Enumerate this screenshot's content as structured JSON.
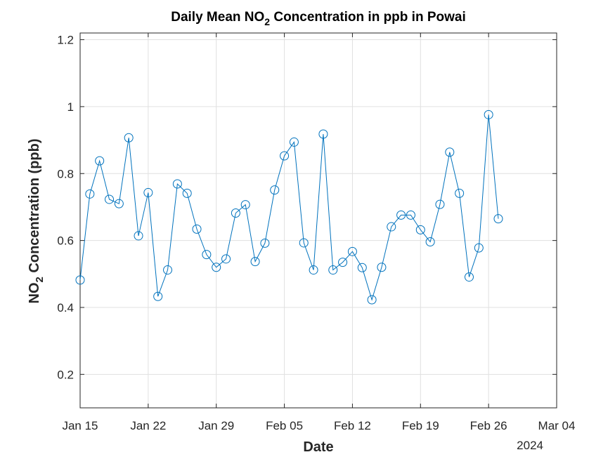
{
  "chart_data": {
    "type": "line",
    "title_prefix": "Daily Mean NO",
    "title_subscript": "2",
    "title_suffix": " Concentration in ppb in Powai",
    "xlabel": "Date",
    "ylabel_prefix": "NO",
    "ylabel_subscript": "2",
    "ylabel_suffix": " Concentration (ppb)",
    "year_label": "2024",
    "x_axis": {
      "type": "date",
      "min": "2024-01-15",
      "max": "2024-03-04",
      "ticks": [
        {
          "date": "2024-01-15",
          "label": "Jan 15"
        },
        {
          "date": "2024-01-22",
          "label": "Jan 22"
        },
        {
          "date": "2024-01-29",
          "label": "Jan 29"
        },
        {
          "date": "2024-02-05",
          "label": "Feb 05"
        },
        {
          "date": "2024-02-12",
          "label": "Feb 12"
        },
        {
          "date": "2024-02-19",
          "label": "Feb 19"
        },
        {
          "date": "2024-02-26",
          "label": "Feb 26"
        },
        {
          "date": "2024-03-04",
          "label": "Mar 04"
        }
      ]
    },
    "y_axis": {
      "min": 0.1,
      "max": 1.22,
      "ticks": [
        0.2,
        0.4,
        0.6,
        0.8,
        1,
        1.2
      ],
      "tick_labels": [
        "0.2",
        "0.4",
        "0.6",
        "0.8",
        "1",
        "1.2"
      ]
    },
    "grid": true,
    "legend": "none",
    "colors": {
      "series": "#0072bd",
      "grid": "#e0e0e0",
      "axis": "#262626"
    },
    "marker": "circle",
    "series": [
      {
        "x": [
          "2024-01-15",
          "2024-01-16",
          "2024-01-17",
          "2024-01-18",
          "2024-01-19",
          "2024-01-20",
          "2024-01-21",
          "2024-01-22",
          "2024-01-23",
          "2024-01-24",
          "2024-01-25",
          "2024-01-26",
          "2024-01-27",
          "2024-01-28",
          "2024-01-29",
          "2024-01-30",
          "2024-01-31",
          "2024-02-01",
          "2024-02-02",
          "2024-02-03",
          "2024-02-04",
          "2024-02-05",
          "2024-02-06",
          "2024-02-07",
          "2024-02-08",
          "2024-02-09",
          "2024-02-10",
          "2024-02-11",
          "2024-02-12",
          "2024-02-13",
          "2024-02-14",
          "2024-02-15",
          "2024-02-16",
          "2024-02-17",
          "2024-02-18",
          "2024-02-19",
          "2024-02-20",
          "2024-02-21",
          "2024-02-22",
          "2024-02-23",
          "2024-02-24",
          "2024-02-25",
          "2024-02-26",
          "2024-02-27"
        ],
        "y": [
          0.482,
          0.739,
          0.838,
          0.723,
          0.71,
          0.907,
          0.614,
          0.743,
          0.433,
          0.512,
          0.769,
          0.741,
          0.634,
          0.558,
          0.52,
          0.545,
          0.682,
          0.707,
          0.537,
          0.592,
          0.751,
          0.853,
          0.894,
          0.593,
          0.512,
          0.918,
          0.512,
          0.535,
          0.567,
          0.519,
          0.423,
          0.52,
          0.641,
          0.676,
          0.676,
          0.632,
          0.596,
          0.708,
          0.864,
          0.741,
          0.491,
          0.578,
          0.976,
          0.665
        ]
      }
    ]
  }
}
